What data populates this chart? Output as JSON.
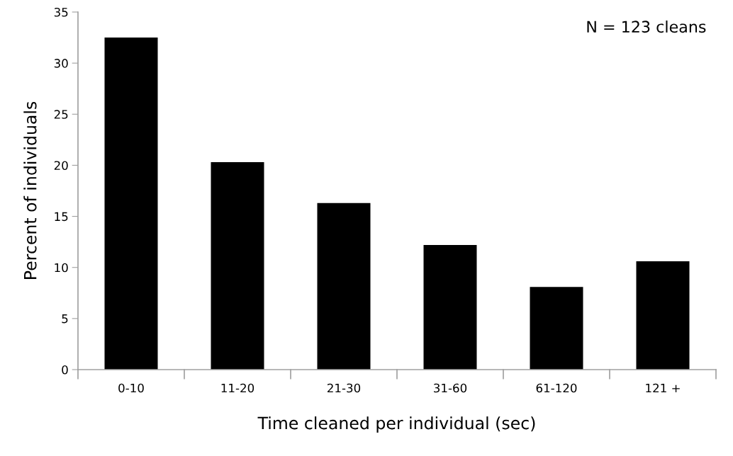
{
  "chart_data": {
    "type": "bar",
    "xlabel": "Time cleaned per individual (sec)",
    "ylabel": "Percent of individuals",
    "categories": [
      "0-10",
      "11-20",
      "21-30",
      "31-60",
      "61-120",
      "121 +"
    ],
    "values": [
      32.5,
      20.3,
      16.3,
      12.2,
      8.1,
      10.6
    ],
    "color": "#000000",
    "ylim": [
      0,
      35
    ],
    "yticks": [
      0,
      5,
      10,
      15,
      20,
      25,
      30,
      35
    ],
    "grid": false,
    "legend": false,
    "annotations": [
      "N = 123 cleans"
    ]
  }
}
